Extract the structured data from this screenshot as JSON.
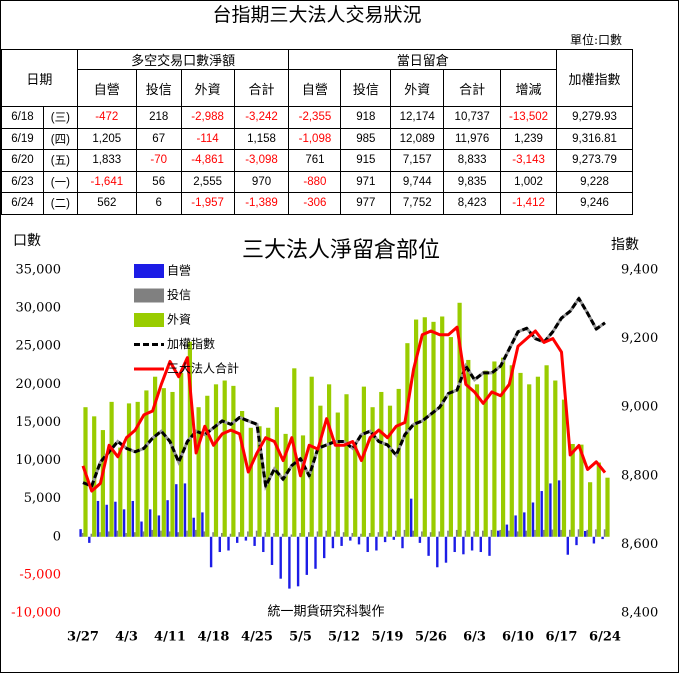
{
  "table": {
    "title": "台指期三大法人交易狀況",
    "unit": "單位:口數",
    "header": {
      "date": "日期",
      "groups": [
        "多空交易口數淨額",
        "當日留倉"
      ],
      "index": "加權指數",
      "columns": [
        "自營",
        "投信",
        "外資",
        "合計",
        "自營",
        "投信",
        "外資",
        "合計",
        "增減"
      ]
    },
    "rows": [
      [
        "6/18",
        "(三)",
        "-472",
        "218",
        "-2,988",
        "-3,242",
        "-2,355",
        "918",
        "12,174",
        "10,737",
        "-13,502",
        "9,279.93"
      ],
      [
        "6/19",
        "(四)",
        "1,205",
        "67",
        "-114",
        "1,158",
        "-1,098",
        "985",
        "12,089",
        "11,976",
        "1,239",
        "9,316.81"
      ],
      [
        "6/20",
        "(五)",
        "1,833",
        "-70",
        "-4,861",
        "-3,098",
        "761",
        "915",
        "7,157",
        "8,833",
        "-3,143",
        "9,273.79"
      ],
      [
        "6/23",
        "(一)",
        "-1,641",
        "56",
        "2,555",
        "970",
        "-880",
        "971",
        "9,744",
        "9,835",
        "1,002",
        "9,228"
      ],
      [
        "6/24",
        "(二)",
        "562",
        "6",
        "-1,957",
        "-1,389",
        "-306",
        "977",
        "7,752",
        "8,423",
        "-1,412",
        "9,246"
      ]
    ]
  },
  "chart_data": {
    "type": "bar-line",
    "title": "三大法人淨留倉部位",
    "y_label": "口數",
    "y2_label": "指數",
    "annotation": "統一期貨研究科製作",
    "categories": [
      "3/27",
      null,
      null,
      null,
      null,
      "4/3",
      null,
      null,
      null,
      null,
      "4/11",
      null,
      null,
      null,
      null,
      "4/18",
      null,
      null,
      null,
      null,
      "4/25",
      null,
      null,
      null,
      null,
      "5/5",
      null,
      null,
      null,
      null,
      "5/12",
      null,
      null,
      null,
      null,
      "5/19",
      null,
      null,
      null,
      null,
      "5/26",
      null,
      null,
      null,
      null,
      "6/3",
      null,
      null,
      null,
      null,
      "6/10",
      null,
      null,
      null,
      null,
      "6/17",
      null,
      null,
      null,
      null,
      "6/24"
    ],
    "ylim": [
      -10000,
      35000
    ],
    "yticks": [
      {
        "value": -10000,
        "label": "-10,000"
      },
      {
        "value": -5000,
        "label": "-5,000"
      },
      0,
      {
        "value": 5000,
        "label": "5,000"
      },
      {
        "value": 10000,
        "label": "10,000"
      },
      {
        "value": 15000,
        "label": "15,000"
      },
      {
        "value": 20000,
        "label": "20,000"
      },
      {
        "value": 25000,
        "label": "25,000"
      },
      {
        "value": 30000,
        "label": "30,000"
      },
      {
        "value": 35000,
        "label": "35,000"
      }
    ],
    "y2lim": [
      8400,
      9400
    ],
    "y2ticks": [
      {
        "value": 8400,
        "label": "8,400"
      },
      {
        "value": 8600,
        "label": "8,600"
      },
      {
        "value": 8800,
        "label": "8,800"
      },
      {
        "value": 9000,
        "label": "9,000"
      },
      {
        "value": 9200,
        "label": "9,200"
      },
      {
        "value": 9400,
        "label": "9,400"
      }
    ],
    "negative_tick_color": "#ff0000",
    "series": [
      {
        "name": "自營",
        "kind": "bar",
        "color": "#1c1ce6",
        "values": [
          1000,
          -800,
          4700,
          4200,
          4600,
          3600,
          4700,
          2000,
          3600,
          2800,
          4800,
          6900,
          7000,
          2500,
          3200,
          -4000,
          -2000,
          -1800,
          -800,
          -500,
          -1200,
          -2000,
          -3700,
          -5500,
          -6800,
          -6500,
          -5000,
          -4200,
          -2800,
          -1500,
          -1200,
          -500,
          -1000,
          -2000,
          -1800,
          -700,
          -400,
          -1500,
          5000,
          -800,
          -2500,
          -4000,
          -3400,
          -2000,
          -2300,
          -1800,
          -2000,
          -2500,
          800,
          1600,
          2800,
          3200,
          4500,
          6000,
          7000,
          7400,
          -2355,
          -1098,
          761,
          -880,
          -306
        ]
      },
      {
        "name": "投信",
        "kind": "bar",
        "color": "#808080",
        "values": [
          500,
          400,
          600,
          700,
          800,
          500,
          600,
          700,
          900,
          800,
          700,
          600,
          800,
          900,
          700,
          600,
          500,
          400,
          600,
          700,
          800,
          600,
          500,
          400,
          300,
          500,
          600,
          700,
          800,
          700,
          600,
          500,
          400,
          500,
          600,
          700,
          800,
          900,
          800,
          700,
          600,
          700,
          800,
          900,
          800,
          700,
          800,
          900,
          900,
          800,
          700,
          800,
          900,
          900,
          950,
          900,
          918,
          985,
          915,
          971,
          977
        ]
      },
      {
        "name": "外資",
        "kind": "bar",
        "color": "#99cc00",
        "values": [
          17000,
          15800,
          14000,
          17700,
          11700,
          17500,
          17700,
          19200,
          21000,
          19500,
          19000,
          21500,
          25600,
          17000,
          18500,
          20000,
          20500,
          19800,
          16500,
          14300,
          14500,
          14300,
          17000,
          13500,
          22100,
          13300,
          21000,
          17200,
          20000,
          16300,
          18700,
          12000,
          19700,
          17000,
          19000,
          17200,
          19400,
          25400,
          28500,
          28800,
          28200,
          28900,
          26200,
          30700,
          23200,
          20000,
          21800,
          23000,
          23500,
          22500,
          21500,
          20000,
          21000,
          22500,
          20500,
          18000,
          12174,
          12089,
          7157,
          9744,
          7752
        ]
      },
      {
        "name": "加權指數",
        "kind": "line",
        "axis": "y2",
        "color": "#000000",
        "dashed": true,
        "values": [
          8780,
          8770,
          8840,
          8870,
          8900,
          8880,
          8870,
          8880,
          8910,
          8930,
          8900,
          8840,
          8900,
          8930,
          8920,
          8940,
          8960,
          8950,
          8970,
          8960,
          8950,
          8770,
          8820,
          8790,
          8830,
          8850,
          8800,
          8880,
          8890,
          8900,
          8900,
          8880,
          8920,
          8930,
          8900,
          8890,
          8860,
          8920,
          8950,
          8960,
          8980,
          9000,
          9040,
          9050,
          9120,
          9080,
          9100,
          9100,
          9120,
          9170,
          9220,
          9230,
          9200,
          9190,
          9220,
          9260,
          9279.93,
          9316.81,
          9273.79,
          9228,
          9246
        ]
      },
      {
        "name": "三大法人合計",
        "kind": "line",
        "color": "#ff0000",
        "values": [
          9300,
          6000,
          7000,
          12000,
          10500,
          13000,
          14000,
          16000,
          16500,
          20000,
          23000,
          21000,
          23500,
          11000,
          14500,
          12000,
          13500,
          14000,
          13500,
          8500,
          11000,
          13000,
          12500,
          10000,
          13000,
          8000,
          12000,
          11500,
          15500,
          12000,
          12000,
          12500,
          10000,
          13000,
          14000,
          13000,
          14500,
          15000,
          22000,
          26500,
          27000,
          26500,
          26500,
          27500,
          20000,
          19000,
          17500,
          19000,
          18500,
          20000,
          25000,
          26000,
          27000,
          25500,
          26000,
          24239,
          10737,
          11976,
          8833,
          9835,
          8423
        ]
      }
    ]
  }
}
